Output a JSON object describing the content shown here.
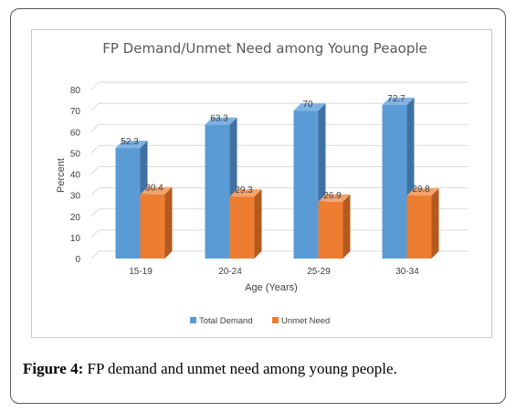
{
  "figure": {
    "label": "Figure 4:",
    "caption": "FP demand and unmet need among young people."
  },
  "chart_data": {
    "type": "bar",
    "title": "FP Demand/Unmet Need among Young Peaople",
    "xlabel": "Age (Years)",
    "ylabel": "Percent",
    "categories": [
      "15-19",
      "20-24",
      "25-29",
      "30-34"
    ],
    "ylim": [
      0,
      80
    ],
    "yticks": [
      0,
      10,
      20,
      30,
      40,
      50,
      60,
      70,
      80
    ],
    "grid": true,
    "legend_position": "bottom",
    "series": [
      {
        "name": "Total Demand",
        "values": [
          52.3,
          63.3,
          70,
          72.7
        ],
        "labels": [
          "52.3",
          "63.3",
          "70",
          "72.7"
        ],
        "color": "#5b9bd5",
        "side_color": "#3f72a3",
        "top_color": "#7fb2e2"
      },
      {
        "name": "Unmet Need",
        "values": [
          30.4,
          29.3,
          26.9,
          29.8
        ],
        "labels": [
          "30.4",
          "29.3",
          "26.9",
          "29.8"
        ],
        "color": "#ed7d31",
        "side_color": "#b55a1f",
        "top_color": "#f3a26c"
      }
    ]
  }
}
